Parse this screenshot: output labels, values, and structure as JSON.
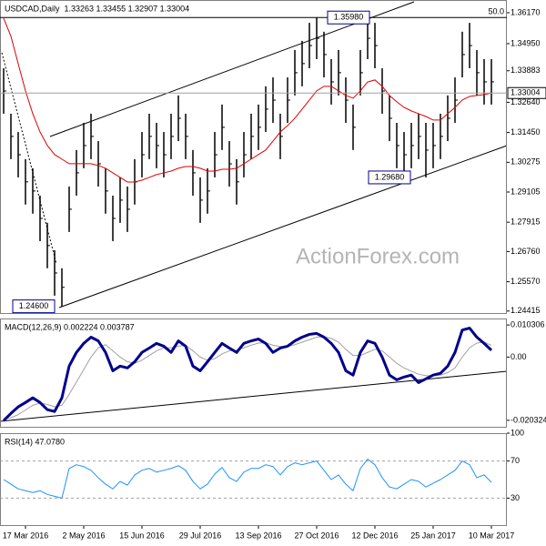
{
  "chart_data": [
    {
      "type": "ohlc",
      "title": "USDCAD,Daily  1.33263 1.33455 1.32907 1.33004",
      "bar_color": "#000000",
      "categories": [
        null,
        null,
        null,
        "17 Mar 2016",
        null,
        null,
        null,
        null,
        null,
        null,
        null,
        "2 May 2016",
        null,
        null,
        null,
        null,
        null,
        null,
        null,
        "15 Jun 2016",
        null,
        null,
        null,
        null,
        null,
        null,
        null,
        "29 Jul 2016",
        null,
        null,
        null,
        null,
        null,
        null,
        null,
        "13 Sep 2016",
        null,
        null,
        null,
        null,
        null,
        null,
        null,
        "27 Oct 2016",
        null,
        null,
        null,
        null,
        null,
        null,
        null,
        "12 Dec 2016",
        null,
        null,
        null,
        null,
        null,
        null,
        null,
        "25 Jan 2017",
        null,
        null,
        null,
        null,
        null,
        null,
        null,
        "10 Mar 2017"
      ],
      "high": [
        1.3398,
        1.3219,
        1.3147,
        1.304,
        1.3004,
        1.2896,
        1.2789,
        1.2681,
        1.261,
        1.2932,
        1.3076,
        1.3183,
        1.3219,
        1.3111,
        1.3004,
        1.2896,
        1.2968,
        1.2932,
        1.304,
        1.3147,
        1.3219,
        1.3183,
        1.3147,
        1.3219,
        1.3291,
        1.3219,
        1.3076,
        1.2968,
        1.3004,
        1.3147,
        1.3255,
        1.3111,
        1.304,
        1.3147,
        1.3219,
        1.3255,
        1.3327,
        1.3362,
        1.3219,
        1.3362,
        1.347,
        1.3506,
        1.3577,
        1.3598,
        1.3542,
        1.3434,
        1.347,
        1.3362,
        1.3255,
        1.347,
        1.3598,
        1.3577,
        1.3398,
        1.3291,
        1.3183,
        1.3147,
        1.3183,
        1.3219,
        1.3183,
        1.3183,
        1.3219,
        1.3291,
        1.3362,
        1.3542,
        1.3577,
        1.347,
        1.3434,
        1.3434
      ],
      "low": [
        1.3219,
        1.304,
        1.2968,
        1.2861,
        1.2825,
        1.2717,
        1.261,
        1.2502,
        1.246,
        1.2753,
        1.2896,
        1.3004,
        1.304,
        1.2932,
        1.2825,
        1.2717,
        1.2789,
        1.2753,
        1.2861,
        1.2968,
        1.304,
        1.3004,
        1.2968,
        1.304,
        1.3111,
        1.304,
        1.2896,
        1.2789,
        1.2825,
        1.2968,
        1.3076,
        1.2932,
        1.2861,
        1.2968,
        1.304,
        1.3076,
        1.3147,
        1.3183,
        1.304,
        1.3183,
        1.3291,
        1.3327,
        1.3398,
        1.3434,
        1.3362,
        1.3255,
        1.3291,
        1.3183,
        1.3076,
        1.3291,
        1.3434,
        1.3398,
        1.3219,
        1.3111,
        1.3004,
        1.2968,
        1.3004,
        1.304,
        1.2968,
        1.3004,
        1.304,
        1.3111,
        1.3183,
        1.3362,
        1.3398,
        1.3291,
        1.3255,
        1.3255
      ],
      "ma": {
        "color": "#e00000",
        "values": [
          1.3595,
          1.3524,
          1.3416,
          1.3309,
          1.3219,
          1.3147,
          1.3094,
          1.3058,
          1.304,
          1.3022,
          1.3022,
          1.3022,
          1.3022,
          1.3015,
          1.3004,
          1.2986,
          1.2968,
          1.295,
          1.295,
          1.2957,
          1.2968,
          1.2979,
          1.2986,
          1.2993,
          1.3004,
          1.3011,
          1.3011,
          1.3004,
          1.2993,
          1.2993,
          1.3,
          1.3,
          1.3004,
          1.3022,
          1.304,
          1.3058,
          1.3076,
          1.3111,
          1.3147,
          1.3172,
          1.3201,
          1.3237,
          1.3273,
          1.3309,
          1.3327,
          1.3327,
          1.3309,
          1.3291,
          1.328,
          1.3309,
          1.3344,
          1.3352,
          1.3327,
          1.3291,
          1.3266,
          1.3244,
          1.323,
          1.3219,
          1.3208,
          1.3194,
          1.3194,
          1.3219,
          1.3244,
          1.3273,
          1.3287,
          1.3291,
          1.3294,
          1.3301
        ]
      },
      "ylim": [
        1.243,
        1.3667
      ],
      "yticks": [
        {
          "value": 1.3617,
          "label": "1.36170"
        },
        {
          "value": 1.3495,
          "label": "1.34950"
        },
        1.33883,
        {
          "value": 1.3264,
          "label": "1.32640"
        },
        {
          "value": 1.3145,
          "label": "1.31450"
        },
        1.30275,
        1.29105,
        1.27915,
        {
          "value": 1.2676,
          "label": "1.26760"
        },
        {
          "value": 1.2557,
          "label": "1.25570"
        },
        1.24415
      ],
      "fib_line": {
        "value": 1.3598,
        "label": "50.0"
      },
      "last_price": {
        "value": 1.33004,
        "label": "1.33004"
      },
      "annotations": [
        {
          "value": 1.3598,
          "label": "1.35980"
        },
        {
          "value": 1.2968,
          "label": "1.29680"
        },
        {
          "value": 1.246,
          "label": "1.24600"
        }
      ],
      "watermark": "ActionForex.com"
    },
    {
      "type": "line",
      "title": "MACD(12,26,9) 0.002224 0.003787",
      "series": [
        {
          "color": "#00008b",
          "width": 3,
          "values": [
            -0.0204,
            -0.0181,
            -0.016,
            -0.0146,
            -0.0131,
            -0.0146,
            -0.0169,
            -0.0175,
            -0.0131,
            -0.0029,
            0.0015,
            0.0044,
            0.0064,
            0.0052,
            0.0015,
            -0.0044,
            -0.0029,
            -0.0035,
            -0.0015,
            0.0015,
            0.0029,
            0.0044,
            0.0035,
            0.0015,
            0.0052,
            0.0035,
            -0.0029,
            -0.0044,
            -0.0015,
            0.0015,
            0.0044,
            0.0029,
            0.0015,
            0.0044,
            0.0052,
            0.0058,
            0.0044,
            0.0015,
            0.0029,
            0.0035,
            0.0052,
            0.0064,
            0.0073,
            0.0076,
            0.0064,
            0.0044,
            0.0015,
            -0.0044,
            -0.0058,
            0.0015,
            0.0052,
            0.0044,
            0.0,
            -0.0058,
            -0.0073,
            -0.0064,
            -0.0058,
            -0.0082,
            -0.007,
            -0.0058,
            -0.0052,
            -0.0029,
            0.0015,
            0.0087,
            0.0093,
            0.0064,
            0.0044,
            0.0022
          ]
        },
        {
          "color": "#a0a0a0",
          "width": 1,
          "values": [
            -0.02,
            -0.0195,
            -0.0185,
            -0.017,
            -0.0155,
            -0.0148,
            -0.0152,
            -0.016,
            -0.0155,
            -0.012,
            -0.008,
            -0.004,
            0.0,
            0.003,
            0.004,
            0.002,
            0.0,
            -0.0015,
            -0.002,
            -0.001,
            0.0005,
            0.002,
            0.003,
            0.003,
            0.0035,
            0.0038,
            0.002,
            0.0,
            -0.001,
            -0.0005,
            0.001,
            0.002,
            0.0022,
            0.003,
            0.0038,
            0.0045,
            0.0046,
            0.0038,
            0.0034,
            0.0034,
            0.004,
            0.0048,
            0.0056,
            0.0064,
            0.0066,
            0.006,
            0.0048,
            0.0025,
            0.0005,
            0.0005,
            0.0015,
            0.0025,
            0.002,
            0.0,
            -0.002,
            -0.0035,
            -0.0045,
            -0.0055,
            -0.006,
            -0.006,
            -0.0058,
            -0.005,
            -0.0035,
            0.0,
            0.003,
            0.0045,
            0.0048,
            0.0038
          ]
        }
      ],
      "ylim": [
        -0.0227,
        0.0124
      ],
      "yticks": [
        0.010306,
        {
          "value": 0,
          "label": "0.00"
        },
        -0.020324
      ]
    },
    {
      "type": "line",
      "title": "RSI(14) 47.0780",
      "color": "#1e90ff",
      "grid": true,
      "values": [
        50,
        45,
        40,
        38,
        36,
        38,
        34,
        32,
        30,
        62,
        66,
        64,
        60,
        52,
        45,
        40,
        48,
        44,
        55,
        60,
        62,
        58,
        60,
        62,
        65,
        60,
        48,
        40,
        45,
        56,
        63,
        52,
        48,
        58,
        62,
        62,
        66,
        64,
        55,
        64,
        68,
        66,
        68,
        70,
        60,
        50,
        55,
        45,
        38,
        62,
        72,
        66,
        52,
        42,
        40,
        45,
        50,
        48,
        42,
        46,
        50,
        55,
        60,
        70,
        66,
        52,
        55,
        47.078
      ],
      "ylim": [
        0,
        100
      ],
      "yticks": [
        100,
        70,
        30
      ]
    }
  ]
}
